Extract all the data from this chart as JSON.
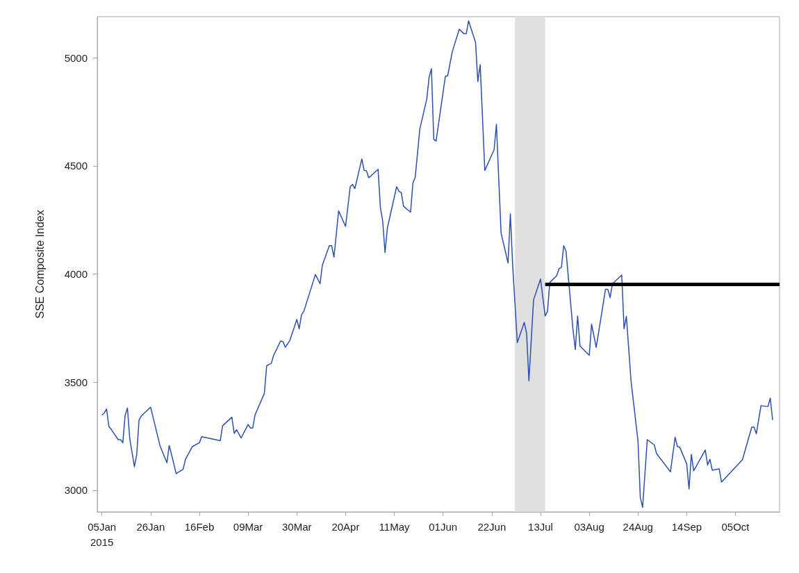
{
  "chart_data": {
    "type": "line",
    "ylabel": "SSE Composite Index",
    "marker": "none",
    "line_style": "solid",
    "grid": false,
    "xlim": [
      "2015-01-03",
      "2015-10-24"
    ],
    "ylim": [
      2900,
      5190
    ],
    "xticks": [
      {
        "value": "2015-01-05",
        "label": "05Jan\n2015"
      },
      {
        "value": "2015-01-26",
        "label": "26Jan"
      },
      {
        "value": "2015-02-16",
        "label": "16Feb"
      },
      {
        "value": "2015-03-09",
        "label": "09Mar"
      },
      {
        "value": "2015-03-30",
        "label": "30Mar"
      },
      {
        "value": "2015-04-20",
        "label": "20Apr"
      },
      {
        "value": "2015-05-11",
        "label": "11May"
      },
      {
        "value": "2015-06-01",
        "label": "01Jun"
      },
      {
        "value": "2015-06-22",
        "label": "22Jun"
      },
      {
        "value": "2015-07-13",
        "label": "13Jul"
      },
      {
        "value": "2015-08-03",
        "label": "03Aug"
      },
      {
        "value": "2015-08-24",
        "label": "24Aug"
      },
      {
        "value": "2015-09-14",
        "label": "14Sep"
      },
      {
        "value": "2015-10-05",
        "label": "05Oct"
      }
    ],
    "yticks": [
      3000,
      3500,
      4000,
      4500,
      5000
    ],
    "bands": [
      {
        "axis": "x",
        "from": "2015-07-02",
        "to": "2015-07-15",
        "color": "#e0e0e0"
      }
    ],
    "x": [
      "2015-01-05",
      "2015-01-06",
      "2015-01-07",
      "2015-01-08",
      "2015-01-09",
      "2015-01-12",
      "2015-01-13",
      "2015-01-14",
      "2015-01-15",
      "2015-01-16",
      "2015-01-17",
      "2015-01-19",
      "2015-01-20",
      "2015-01-21",
      "2015-01-22",
      "2015-01-26",
      "2015-01-30",
      "2015-02-02",
      "2015-02-03",
      "2015-02-04",
      "2015-02-06",
      "2015-02-09",
      "2015-02-10",
      "2015-02-13",
      "2015-02-16",
      "2015-02-17",
      "2015-02-25",
      "2015-02-26",
      "2015-03-02",
      "2015-03-03",
      "2015-03-04",
      "2015-03-06",
      "2015-03-09",
      "2015-03-10",
      "2015-03-11",
      "2015-03-12",
      "2015-03-16",
      "2015-03-17",
      "2015-03-19",
      "2015-03-20",
      "2015-03-23",
      "2015-03-24",
      "2015-03-25",
      "2015-03-27",
      "2015-03-30",
      "2015-03-31",
      "2015-04-01",
      "2015-04-02",
      "2015-04-07",
      "2015-04-09",
      "2015-04-10",
      "2015-04-13",
      "2015-04-14",
      "2015-04-15",
      "2015-04-17",
      "2015-04-20",
      "2015-04-22",
      "2015-04-23",
      "2015-04-24",
      "2015-04-27",
      "2015-04-28",
      "2015-04-29",
      "2015-04-30",
      "2015-05-04",
      "2015-05-05",
      "2015-05-06",
      "2015-05-07",
      "2015-05-08",
      "2015-05-12",
      "2015-05-13",
      "2015-05-14",
      "2015-05-15",
      "2015-05-18",
      "2015-05-19",
      "2015-05-20",
      "2015-05-22",
      "2015-05-25",
      "2015-05-26",
      "2015-05-27",
      "2015-05-28",
      "2015-05-29",
      "2015-06-02",
      "2015-06-03",
      "2015-06-05",
      "2015-06-08",
      "2015-06-10",
      "2015-06-11",
      "2015-06-12",
      "2015-06-15",
      "2015-06-16",
      "2015-06-17",
      "2015-06-19",
      "2015-06-23",
      "2015-06-24",
      "2015-06-26",
      "2015-06-29",
      "2015-06-30",
      "2015-07-01",
      "2015-07-03",
      "2015-07-06",
      "2015-07-07",
      "2015-07-08",
      "2015-07-10",
      "2015-07-13",
      "2015-07-15",
      "2015-07-16",
      "2015-07-17",
      "2015-07-20",
      "2015-07-21",
      "2015-07-22",
      "2015-07-23",
      "2015-07-24",
      "2015-07-27",
      "2015-07-28",
      "2015-07-29",
      "2015-07-30",
      "2015-08-03",
      "2015-08-04",
      "2015-08-06",
      "2015-08-10",
      "2015-08-11",
      "2015-08-12",
      "2015-08-13",
      "2015-08-17",
      "2015-08-18",
      "2015-08-19",
      "2015-08-21",
      "2015-08-24",
      "2015-08-25",
      "2015-08-26",
      "2015-08-28",
      "2015-08-31",
      "2015-09-01",
      "2015-09-07",
      "2015-09-09",
      "2015-09-10",
      "2015-09-11",
      "2015-09-14",
      "2015-09-15",
      "2015-09-16",
      "2015-09-17",
      "2015-09-22",
      "2015-09-23",
      "2015-09-24",
      "2015-09-25",
      "2015-09-28",
      "2015-09-29",
      "2015-10-08",
      "2015-10-12",
      "2015-10-13",
      "2015-10-14",
      "2015-10-16",
      "2015-10-19",
      "2015-10-20",
      "2015-10-21"
    ],
    "series": [
      {
        "color": "#2a4fb0",
        "values": [
          3348,
          3357,
          3376,
          3295,
          3282,
          3234,
          3234,
          3220,
          3346,
          3380,
          3239,
          3109,
          3165,
          3325,
          3344,
          3384,
          3207,
          3127,
          3207,
          3165,
          3077,
          3097,
          3143,
          3202,
          3220,
          3248,
          3229,
          3298,
          3338,
          3263,
          3280,
          3242,
          3304,
          3288,
          3288,
          3349,
          3448,
          3576,
          3587,
          3624,
          3690,
          3688,
          3661,
          3693,
          3790,
          3747,
          3811,
          3827,
          3998,
          3955,
          4041,
          4131,
          4131,
          4078,
          4292,
          4220,
          4404,
          4414,
          4395,
          4532,
          4479,
          4477,
          4445,
          4484,
          4308,
          4244,
          4099,
          4212,
          4404,
          4382,
          4377,
          4313,
          4286,
          4420,
          4447,
          4671,
          4810,
          4911,
          4949,
          4623,
          4615,
          4914,
          4917,
          5029,
          5132,
          5111,
          5111,
          5171,
          5071,
          4890,
          4968,
          4479,
          4575,
          4692,
          4190,
          4051,
          4278,
          4041,
          3683,
          3776,
          3726,
          3506,
          3880,
          3977,
          3806,
          3827,
          3961,
          3993,
          4025,
          4030,
          4131,
          4105,
          3742,
          3651,
          3806,
          3667,
          3624,
          3768,
          3661,
          3929,
          3929,
          3891,
          3955,
          3995,
          3747,
          3804,
          3506,
          3229,
          2967,
          2921,
          3234,
          3210,
          3170,
          3085,
          3245,
          3202,
          3199,
          3122,
          3006,
          3166,
          3090,
          3186,
          3117,
          3143,
          3093,
          3099,
          3038,
          3141,
          3291,
          3293,
          3261,
          3391,
          3387,
          3426,
          3325
        ]
      },
      {
        "type": "line",
        "color": "#000000",
        "x": [
          "2015-07-15",
          "2015-10-24"
        ],
        "values": [
          3952,
          3952
        ]
      }
    ]
  }
}
